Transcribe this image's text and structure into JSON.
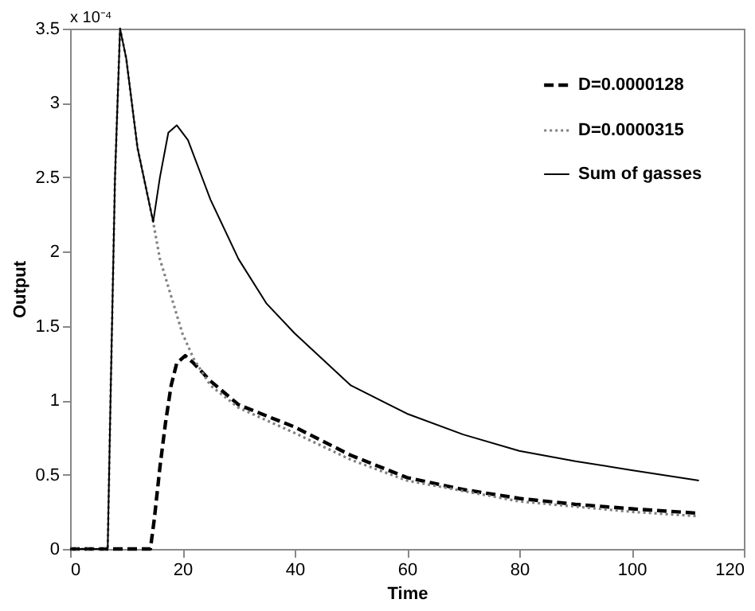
{
  "chart_data": {
    "type": "line",
    "xlabel": "Time",
    "ylabel": "Output",
    "annotations": [
      "x 10⁻⁴"
    ],
    "xlim": [
      0,
      120
    ],
    "xticks": [
      0,
      20,
      40,
      60,
      80,
      100,
      120
    ],
    "ylim": [
      0,
      3.5
    ],
    "yticks": [
      0,
      0.5,
      1,
      1.5,
      2,
      2.5,
      3,
      3.5
    ],
    "grid": false,
    "legend": "top right",
    "marker": "none",
    "series": [
      {
        "name": "D=0.0000128",
        "color": "#000000",
        "line_style": "dashed",
        "x": [
          0,
          14.3,
          15,
          16,
          17,
          18,
          19,
          20.5,
          22,
          25,
          30,
          40,
          50,
          60,
          70,
          80,
          90,
          100,
          112
        ],
        "values": [
          0,
          0,
          0.2,
          0.55,
          0.85,
          1.1,
          1.25,
          1.3,
          1.25,
          1.13,
          0.97,
          0.82,
          0.63,
          0.48,
          0.4,
          0.34,
          0.3,
          0.27,
          0.24
        ]
      },
      {
        "name": "D=0.0000315",
        "color": "#808080",
        "line_style": "dotted",
        "x": [
          0,
          6.7,
          7.2,
          8,
          8.9,
          10,
          12,
          14.8,
          16,
          18,
          20,
          22,
          25,
          30,
          40,
          50,
          60,
          80,
          100,
          112
        ],
        "values": [
          0,
          0,
          1,
          2.5,
          3.5,
          3.3,
          2.7,
          2.2,
          1.95,
          1.7,
          1.45,
          1.28,
          1.1,
          0.95,
          0.78,
          0.6,
          0.46,
          0.32,
          0.25,
          0.22
        ]
      },
      {
        "name": "Sum of gasses",
        "color": "#000000",
        "line_style": "solid",
        "x": [
          0,
          6.7,
          7.2,
          8,
          8.9,
          10,
          12,
          14.8,
          16,
          17.5,
          19,
          21,
          25,
          30,
          35,
          40,
          50,
          60,
          70,
          80,
          90,
          100,
          112
        ],
        "values": [
          0,
          0,
          1,
          2.5,
          3.5,
          3.3,
          2.7,
          2.2,
          2.5,
          2.8,
          2.85,
          2.75,
          2.35,
          1.95,
          1.65,
          1.45,
          1.1,
          0.91,
          0.77,
          0.66,
          0.59,
          0.53,
          0.46
        ]
      }
    ]
  }
}
